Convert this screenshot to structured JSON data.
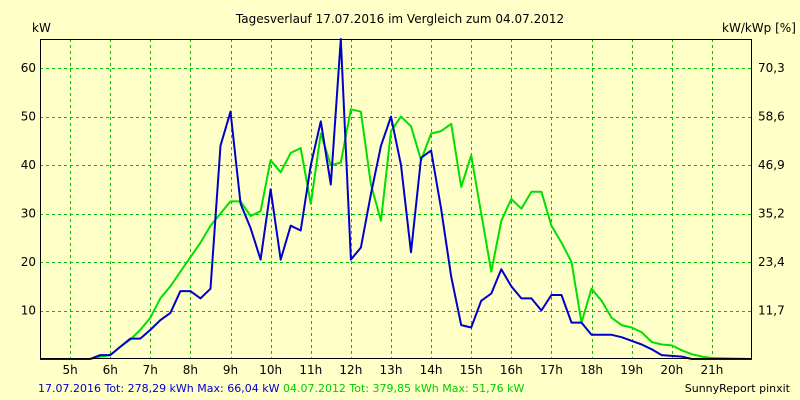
{
  "colors": {
    "background": "#ffffc8",
    "plot_border": "#000000",
    "grid": "#00c000",
    "series_2016": "#0000cc",
    "series_2012": "#00e000"
  },
  "chart_data": {
    "type": "line",
    "title": "Tagesverlauf 17.07.2016 im Vergleich zum 04.07.2012",
    "ylabel_left": "kW",
    "ylabel_right": "kW/kWp [%]",
    "ylim": [
      0,
      66
    ],
    "xlim": [
      4.25,
      22
    ],
    "yticks_left": [
      "10",
      "20",
      "30",
      "40",
      "50",
      "60"
    ],
    "yticks_right": [
      {
        "value": 11.7,
        "label": "11,7"
      },
      {
        "value": 23.4,
        "label": "23,4"
      },
      {
        "value": 35.2,
        "label": "35,2"
      },
      {
        "value": 46.9,
        "label": "46,9"
      },
      {
        "value": 58.6,
        "label": "58,6"
      },
      {
        "value": 70.3,
        "label": "70,3"
      }
    ],
    "right_axis_factor": 1.172,
    "xticks": [
      {
        "value": 5,
        "label": "5h"
      },
      {
        "value": 6,
        "label": "6h"
      },
      {
        "value": 7,
        "label": "7h"
      },
      {
        "value": 8,
        "label": "8h"
      },
      {
        "value": 9,
        "label": "9h"
      },
      {
        "value": 10,
        "label": "10h"
      },
      {
        "value": 11,
        "label": "11h"
      },
      {
        "value": 12,
        "label": "12h"
      },
      {
        "value": 13,
        "label": "13h"
      },
      {
        "value": 14,
        "label": "14h"
      },
      {
        "value": 15,
        "label": "15h"
      },
      {
        "value": 16,
        "label": "16h"
      },
      {
        "value": 17,
        "label": "17h"
      },
      {
        "value": 18,
        "label": "18h"
      },
      {
        "value": 19,
        "label": "19h"
      },
      {
        "value": 20,
        "label": "20h"
      },
      {
        "value": 21,
        "label": "21h"
      }
    ],
    "grid": true,
    "series": [
      {
        "color": "#0000cc",
        "points": [
          [
            4.25,
            0
          ],
          [
            5,
            0
          ],
          [
            5.5,
            0
          ],
          [
            5.75,
            0.8
          ],
          [
            6,
            0.8
          ],
          [
            6.25,
            2.5
          ],
          [
            6.5,
            4.2
          ],
          [
            6.75,
            4.2
          ],
          [
            7,
            6
          ],
          [
            7.25,
            8
          ],
          [
            7.5,
            9.5
          ],
          [
            7.75,
            14
          ],
          [
            8,
            14
          ],
          [
            8.25,
            12.5
          ],
          [
            8.5,
            14.5
          ],
          [
            8.75,
            44
          ],
          [
            9,
            51
          ],
          [
            9.25,
            32
          ],
          [
            9.5,
            27
          ],
          [
            9.75,
            20.5
          ],
          [
            10,
            35
          ],
          [
            10.25,
            20.5
          ],
          [
            10.5,
            27.5
          ],
          [
            10.75,
            26.5
          ],
          [
            11,
            40
          ],
          [
            11.25,
            49
          ],
          [
            11.5,
            36
          ],
          [
            11.75,
            66
          ],
          [
            12,
            20.5
          ],
          [
            12.25,
            23
          ],
          [
            12.5,
            34
          ],
          [
            12.75,
            44
          ],
          [
            13,
            50
          ],
          [
            13.25,
            40
          ],
          [
            13.5,
            22
          ],
          [
            13.75,
            41.5
          ],
          [
            14,
            43
          ],
          [
            14.25,
            31
          ],
          [
            14.5,
            17
          ],
          [
            14.75,
            7
          ],
          [
            15,
            6.5
          ],
          [
            15.25,
            12
          ],
          [
            15.5,
            13.5
          ],
          [
            15.75,
            18.5
          ],
          [
            16,
            15
          ],
          [
            16.25,
            12.5
          ],
          [
            16.5,
            12.5
          ],
          [
            16.75,
            10
          ],
          [
            17,
            13.2
          ],
          [
            17.25,
            13.2
          ],
          [
            17.5,
            7.5
          ],
          [
            17.75,
            7.5
          ],
          [
            18,
            5
          ],
          [
            18.5,
            5
          ],
          [
            18.75,
            4.5
          ],
          [
            19.25,
            3
          ],
          [
            19.5,
            2
          ],
          [
            19.75,
            0.8
          ],
          [
            20.25,
            0.5
          ],
          [
            20.5,
            0
          ],
          [
            21,
            0
          ],
          [
            22,
            0
          ]
        ]
      },
      {
        "color": "#00e000",
        "points": [
          [
            4.25,
            0
          ],
          [
            5.5,
            0
          ],
          [
            5.75,
            0.5
          ],
          [
            6,
            0.8
          ],
          [
            6.25,
            2.5
          ],
          [
            6.5,
            4
          ],
          [
            6.75,
            6
          ],
          [
            7,
            8.5
          ],
          [
            7.25,
            12.5
          ],
          [
            7.5,
            15
          ],
          [
            7.75,
            18
          ],
          [
            8,
            21
          ],
          [
            8.25,
            24
          ],
          [
            8.5,
            27.5
          ],
          [
            8.75,
            30
          ],
          [
            9,
            32.5
          ],
          [
            9.25,
            32.5
          ],
          [
            9.5,
            29.5
          ],
          [
            9.75,
            30.5
          ],
          [
            10,
            41
          ],
          [
            10.25,
            38.5
          ],
          [
            10.5,
            42.5
          ],
          [
            10.75,
            43.5
          ],
          [
            11,
            32
          ],
          [
            11.25,
            46.5
          ],
          [
            11.5,
            40
          ],
          [
            11.75,
            40.5
          ],
          [
            12,
            51.5
          ],
          [
            12.25,
            51
          ],
          [
            12.5,
            36
          ],
          [
            12.75,
            28.5
          ],
          [
            13,
            47
          ],
          [
            13.25,
            50
          ],
          [
            13.5,
            48
          ],
          [
            13.75,
            41
          ],
          [
            14,
            46.5
          ],
          [
            14.25,
            47
          ],
          [
            14.5,
            48.5
          ],
          [
            14.75,
            35.5
          ],
          [
            15,
            42
          ],
          [
            15.25,
            30
          ],
          [
            15.5,
            18
          ],
          [
            15.75,
            28.5
          ],
          [
            16,
            33
          ],
          [
            16.25,
            31
          ],
          [
            16.5,
            34.5
          ],
          [
            16.75,
            34.5
          ],
          [
            17,
            27.5
          ],
          [
            17.25,
            24
          ],
          [
            17.5,
            20
          ],
          [
            17.75,
            7.5
          ],
          [
            18,
            14.5
          ],
          [
            18.25,
            12
          ],
          [
            18.5,
            8.5
          ],
          [
            18.75,
            7
          ],
          [
            19,
            6.5
          ],
          [
            19.25,
            5.5
          ],
          [
            19.5,
            3.5
          ],
          [
            19.75,
            3
          ],
          [
            20,
            2.8
          ],
          [
            20.25,
            1.8
          ],
          [
            20.5,
            1
          ],
          [
            20.75,
            0.5
          ],
          [
            21,
            0.2
          ],
          [
            22,
            0
          ]
        ]
      }
    ]
  },
  "footer": {
    "left_2016": "17.07.2016 Tot: 278,29 kWh Max: 66,04 kW",
    "left_2012": "04.07.2012 Tot: 379,85 kWh Max: 51,76 kW",
    "right": "SunnyReport pinxit"
  }
}
